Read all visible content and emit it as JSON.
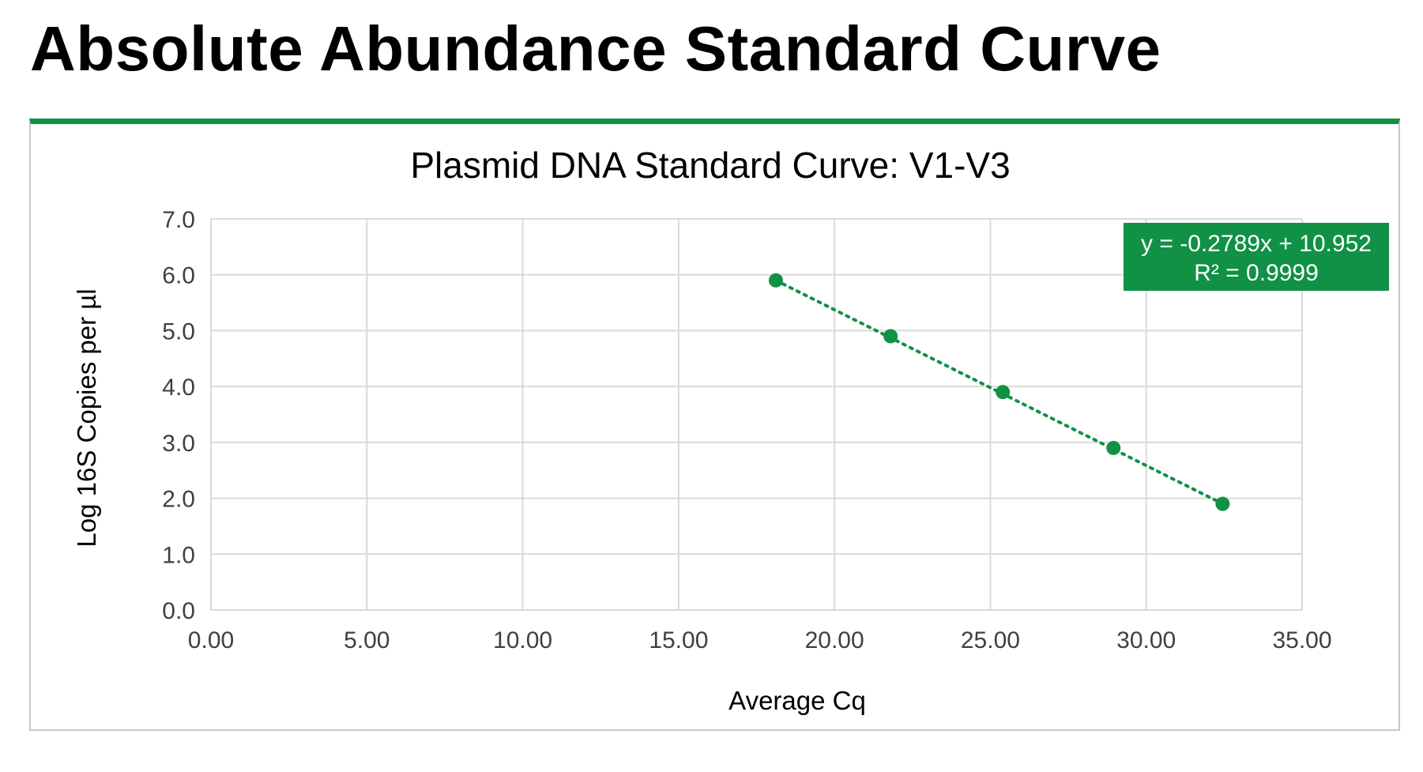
{
  "page": {
    "title": "Absolute Abundance Standard Curve"
  },
  "colors": {
    "accent": "#109146",
    "gridline": "#d9d9d9",
    "frame_border": "#c8c8c8",
    "text": "#000000",
    "tick_text": "#404040",
    "equation_text": "#ffffff"
  },
  "chart_data": {
    "type": "scatter",
    "title": "Plasmid DNA Standard Curve: V1-V3",
    "xlabel": "Average Cq",
    "ylabel": "Log 16S Copies per µl",
    "xlim": [
      0,
      35
    ],
    "ylim": [
      0,
      7
    ],
    "x_ticks": [
      "0.00",
      "5.00",
      "10.00",
      "15.00",
      "20.00",
      "25.00",
      "30.00",
      "35.00"
    ],
    "y_ticks": [
      "0.0",
      "1.0",
      "2.0",
      "3.0",
      "4.0",
      "5.0",
      "6.0",
      "7.0"
    ],
    "grid": true,
    "legend": "none",
    "series": [
      {
        "x": [
          18.12,
          21.8,
          25.4,
          28.95,
          32.45
        ],
        "y": [
          5.9,
          4.9,
          3.9,
          2.9,
          1.9
        ],
        "marker_color": "#109146",
        "trendline": {
          "type": "linear",
          "style": "dotted",
          "slope": -0.2789,
          "intercept": 10.952,
          "x_range": [
            18.12,
            32.45
          ]
        }
      }
    ],
    "annotations": {
      "equation": "y = -0.2789x + 10.952",
      "r_squared": "R² = 0.9999",
      "placement": "top-right"
    }
  }
}
